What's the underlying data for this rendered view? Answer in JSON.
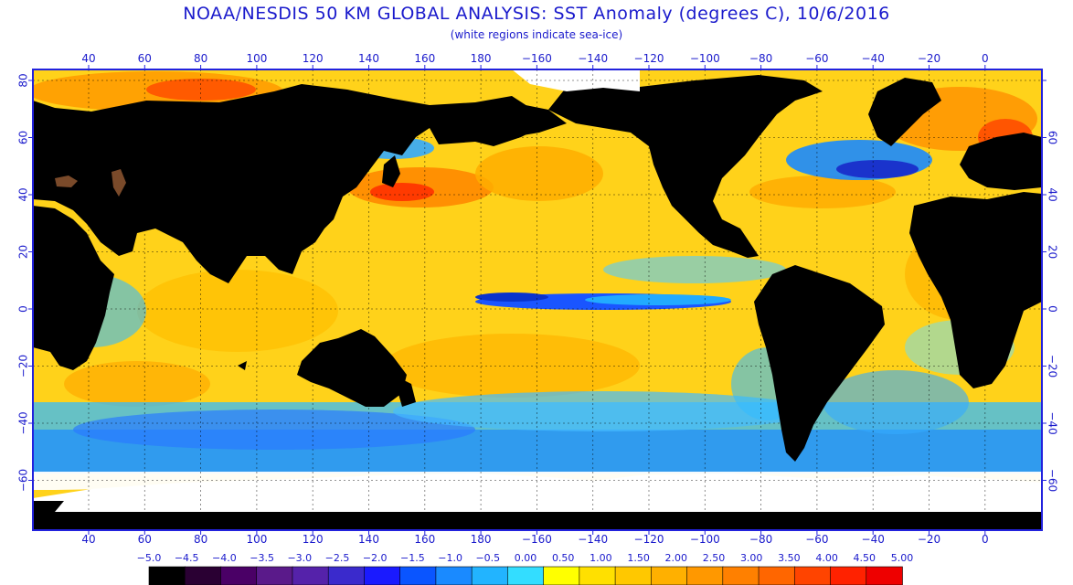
{
  "header": {
    "title": "NOAA/NESDIS 50 KM GLOBAL ANALYSIS: SST Anomaly (degrees C), 10/6/2016",
    "subtitle": "(white regions indicate sea-ice)"
  },
  "map": {
    "lon_labels": [
      "40",
      "60",
      "80",
      "100",
      "120",
      "140",
      "160",
      "180",
      "−160",
      "−140",
      "−120",
      "−100",
      "−80",
      "−60",
      "−40",
      "−20",
      "0"
    ],
    "lat_labels_left": [
      "80",
      "60",
      "40",
      "20",
      "0",
      "−20",
      "−40",
      "−60"
    ],
    "lat_labels_right": [
      "60",
      "40",
      "20",
      "0",
      "−20",
      "−40",
      "−60"
    ],
    "colors": {
      "land": "#000000",
      "ice": "#ffffff",
      "frame": "#2222dd",
      "gridline": "#000000"
    }
  },
  "colorbar": {
    "labels": [
      "−5.0",
      "−4.5",
      "−4.0",
      "−3.5",
      "−3.0",
      "−2.5",
      "−2.0",
      "−1.5",
      "−1.0",
      "−0.5",
      "0.00",
      "0.50",
      "1.00",
      "1.50",
      "2.00",
      "2.50",
      "3.00",
      "3.50",
      "4.00",
      "4.50",
      "5.00"
    ],
    "colors": [
      "#000000",
      "#2a0033",
      "#4a0066",
      "#5a1a8a",
      "#5522aa",
      "#3a2acc",
      "#1a1aff",
      "#0a55ff",
      "#1a8aff",
      "#22b4ff",
      "#33ddff",
      "#ffff00",
      "#ffe000",
      "#ffc800",
      "#ffb000",
      "#ff9800",
      "#ff8000",
      "#ff6600",
      "#ff4400",
      "#ff2200",
      "#ee0000"
    ]
  }
}
